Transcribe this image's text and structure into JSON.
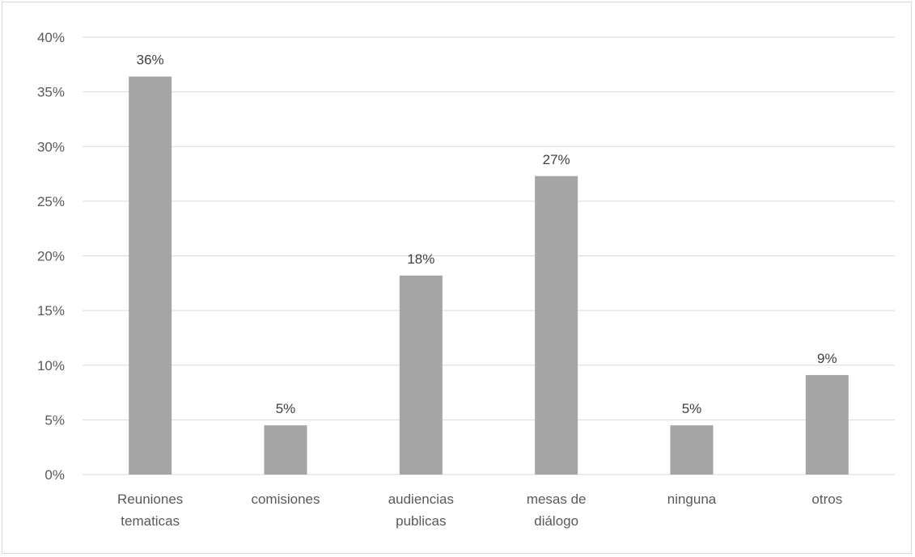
{
  "chart_data": {
    "type": "bar",
    "title": "",
    "xlabel": "",
    "ylabel": "",
    "categories": [
      [
        "Reuniones",
        "tematicas"
      ],
      [
        "comisiones"
      ],
      [
        "audiencias",
        "publicas"
      ],
      [
        "mesas de",
        "diálogo"
      ],
      [
        "ninguna"
      ],
      [
        "otros"
      ]
    ],
    "values": [
      0.364,
      0.045,
      0.182,
      0.273,
      0.045,
      0.091
    ],
    "data_labels": [
      "36%",
      "5%",
      "18%",
      "27%",
      "5%",
      "9%"
    ],
    "ylim": [
      0,
      0.4
    ],
    "yticks": [
      "0%",
      "5%",
      "10%",
      "15%",
      "20%",
      "25%",
      "30%",
      "35%",
      "40%"
    ],
    "grid": true,
    "legend": "none",
    "bar_color": "#a5a5a5",
    "gridline_color": "#d9d9d9"
  }
}
